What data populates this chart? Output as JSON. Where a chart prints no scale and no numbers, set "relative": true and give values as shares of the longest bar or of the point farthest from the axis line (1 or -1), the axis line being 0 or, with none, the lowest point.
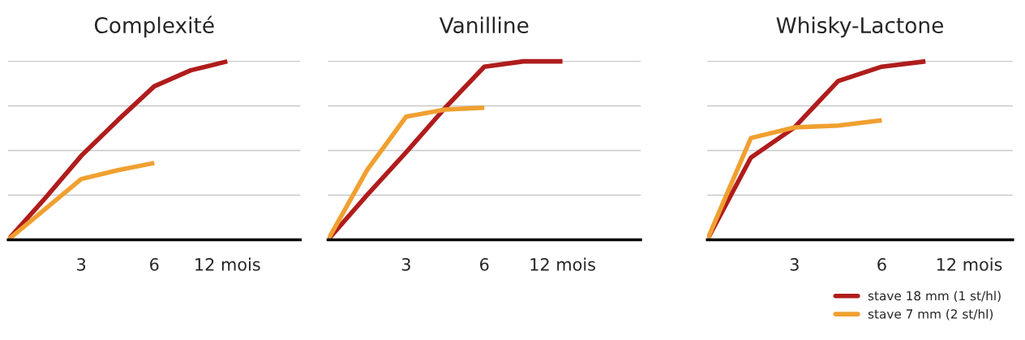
{
  "chart_data": [
    {
      "type": "line",
      "title": "Complexité",
      "relative": true,
      "grid": "y",
      "legend": false,
      "categories": [
        null,
        null,
        "3",
        null,
        "6",
        null,
        "12 mois",
        null,
        null
      ],
      "tick_labels": "x",
      "series": [
        {
          "color": "#b01c1c",
          "values": [
            0,
            0.23,
            0.47,
            0.67,
            0.86,
            0.95,
            1.0,
            null,
            null
          ]
        },
        {
          "color": "#f0a030",
          "values": [
            0,
            0.17,
            0.34,
            0.39,
            0.43,
            null,
            null,
            null,
            null
          ]
        }
      ]
    },
    {
      "type": "line",
      "title": "Vanilline",
      "relative": true,
      "grid": "y",
      "legend": false,
      "categories": [
        null,
        null,
        "3",
        null,
        "6",
        null,
        "12 mois",
        null,
        null
      ],
      "tick_labels": "x",
      "series": [
        {
          "color": "#b01c1c",
          "values": [
            0,
            0.25,
            0.49,
            0.74,
            0.97,
            1.0,
            1.0,
            null,
            null
          ]
        },
        {
          "color": "#f0a030",
          "values": [
            0,
            0.39,
            0.69,
            0.73,
            0.74,
            null,
            null,
            null,
            null
          ]
        }
      ]
    },
    {
      "type": "line",
      "title": "Whisky-Lactone",
      "relative": true,
      "grid": "y",
      "legend": "bottom right",
      "categories": [
        null,
        null,
        "3",
        null,
        "6",
        null,
        "12 mois",
        null
      ],
      "tick_labels": "x",
      "series": [
        {
          "name": "stave 18 mm (1 st/hl)",
          "color": "#b01c1c",
          "values": [
            0,
            0.46,
            0.63,
            0.89,
            0.97,
            1.0,
            null,
            null
          ]
        },
        {
          "name": "stave 7 mm (2 st/hl)",
          "color": "#f0a030",
          "values": [
            0,
            0.57,
            0.63,
            0.64,
            0.67,
            null,
            null,
            null
          ]
        }
      ]
    }
  ]
}
